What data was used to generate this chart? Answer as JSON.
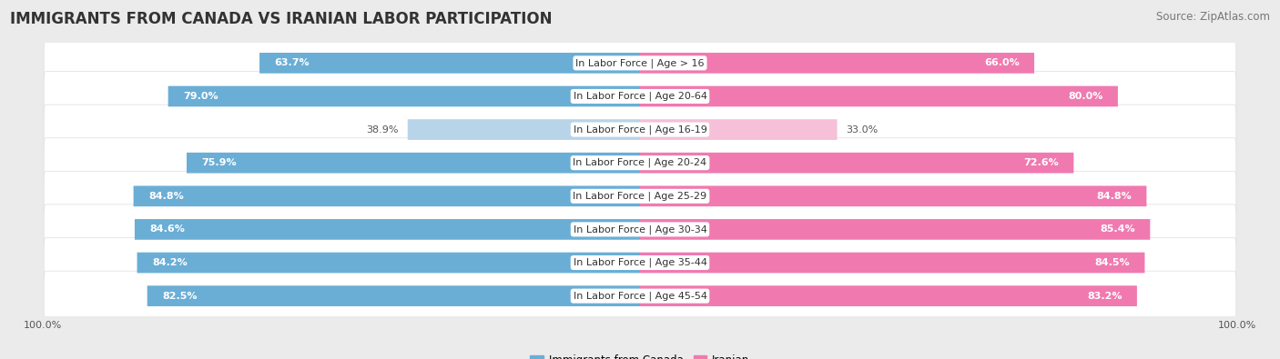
{
  "title": "IMMIGRANTS FROM CANADA VS IRANIAN LABOR PARTICIPATION",
  "source": "Source: ZipAtlas.com",
  "categories": [
    "In Labor Force | Age > 16",
    "In Labor Force | Age 20-64",
    "In Labor Force | Age 16-19",
    "In Labor Force | Age 20-24",
    "In Labor Force | Age 25-29",
    "In Labor Force | Age 30-34",
    "In Labor Force | Age 35-44",
    "In Labor Force | Age 45-54"
  ],
  "canada_values": [
    63.7,
    79.0,
    38.9,
    75.9,
    84.8,
    84.6,
    84.2,
    82.5
  ],
  "iranian_values": [
    66.0,
    80.0,
    33.0,
    72.6,
    84.8,
    85.4,
    84.5,
    83.2
  ],
  "canada_color": "#6aaed6",
  "canada_color_light": "#b8d4e8",
  "iranian_color": "#f07ab0",
  "iranian_color_light": "#f5c0d8",
  "row_bg_color": "#f5f5f5",
  "bg_color": "#ebebeb",
  "max_value": 100.0,
  "legend_label_canada": "Immigrants from Canada",
  "legend_label_iranian": "Iranian",
  "title_fontsize": 12,
  "source_fontsize": 8.5,
  "label_fontsize": 8,
  "value_fontsize": 8,
  "tick_fontsize": 8
}
